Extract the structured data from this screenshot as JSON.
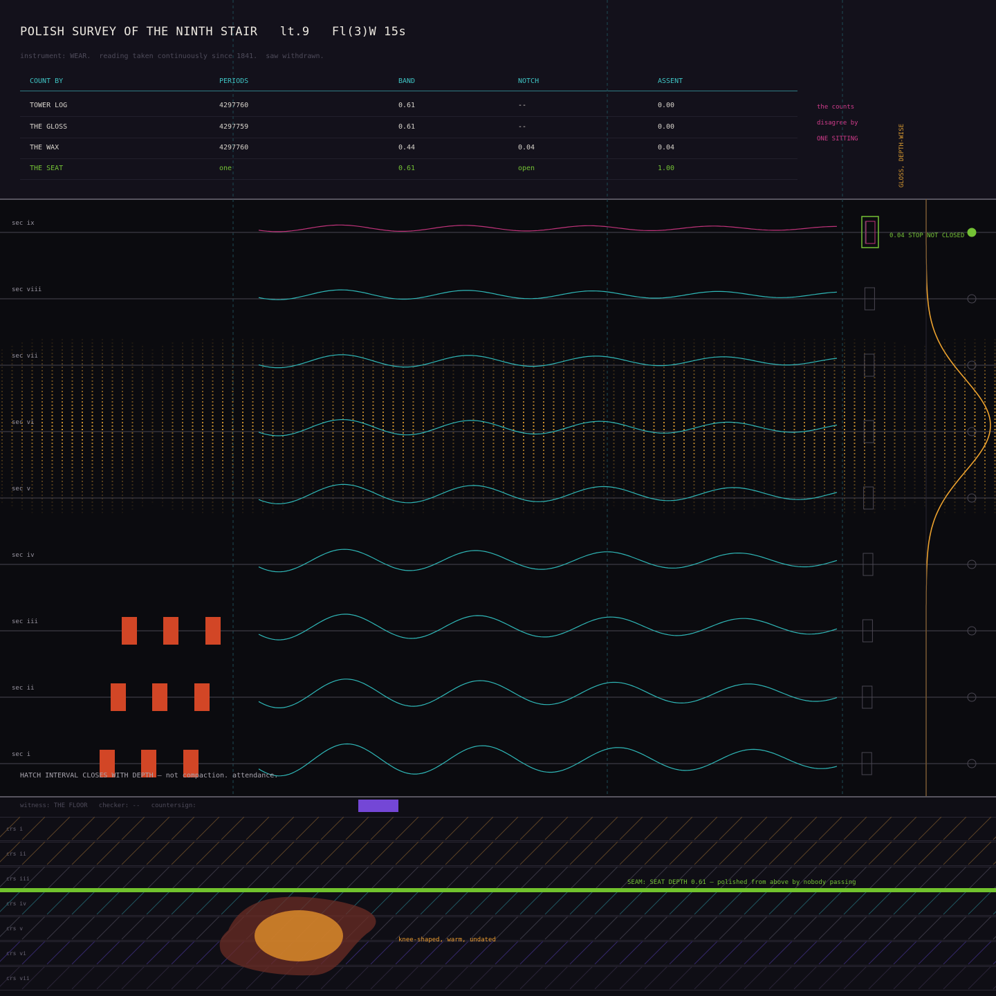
{
  "header": {
    "title": "POLISH SURVEY OF THE NINTH STAIR   lt.9   Fl(3)W 15s",
    "subtitle": "instrument: WEAR.  reading taken continuously since 1841.  saw withdrawn.",
    "columns": [
      "COUNT BY",
      "PERIODS",
      "BAND",
      "NOTCH",
      "ASSENT"
    ],
    "rows": [
      [
        "TOWER LOG",
        "4297760",
        "0.61",
        "--",
        "0.00"
      ],
      [
        "THE GLOSS",
        "4297759",
        "0.61",
        "--",
        "0.00"
      ],
      [
        "THE WAX",
        "4297760",
        "0.44",
        "0.04",
        "0.04"
      ],
      [
        "THE SEAT",
        "one",
        "0.61",
        "open",
        "1.00"
      ]
    ],
    "side_note": [
      "the counts",
      "disagree by",
      "ONE SITTING"
    ],
    "vertical_label": "GLOSS, DEPTH-WISE"
  },
  "plot": {
    "sections": [
      "sec ix",
      "sec viii",
      "sec vii",
      "sec vi",
      "sec v",
      "sec iv",
      "sec iii",
      "sec ii",
      "sec i"
    ],
    "stop_note": "0.04 STOP NOT CLOSED",
    "hatch_note": "HATCH INTERVAL CLOSES WITH DEPTH — not compaction. attendance.",
    "colors": {
      "wave": "#2fb8b8",
      "top_wave": "#c0337a",
      "gloss_curve": "#eda22e",
      "dots": "#d99a30",
      "hatch": "#d24626",
      "accent": "#74c235"
    }
  },
  "footer": {
    "witness": "witness: THE FLOOR   checker: --   countersign:",
    "courses": [
      "crs i",
      "crs ii",
      "crs iii",
      "crs iv",
      "crs v",
      "crs vi",
      "crs vii"
    ],
    "seam_note": "SEAM: SEAT DEPTH 0.61 — polished from above by nobody passing",
    "knee_note": "knee-shaped, warm, undated"
  }
}
